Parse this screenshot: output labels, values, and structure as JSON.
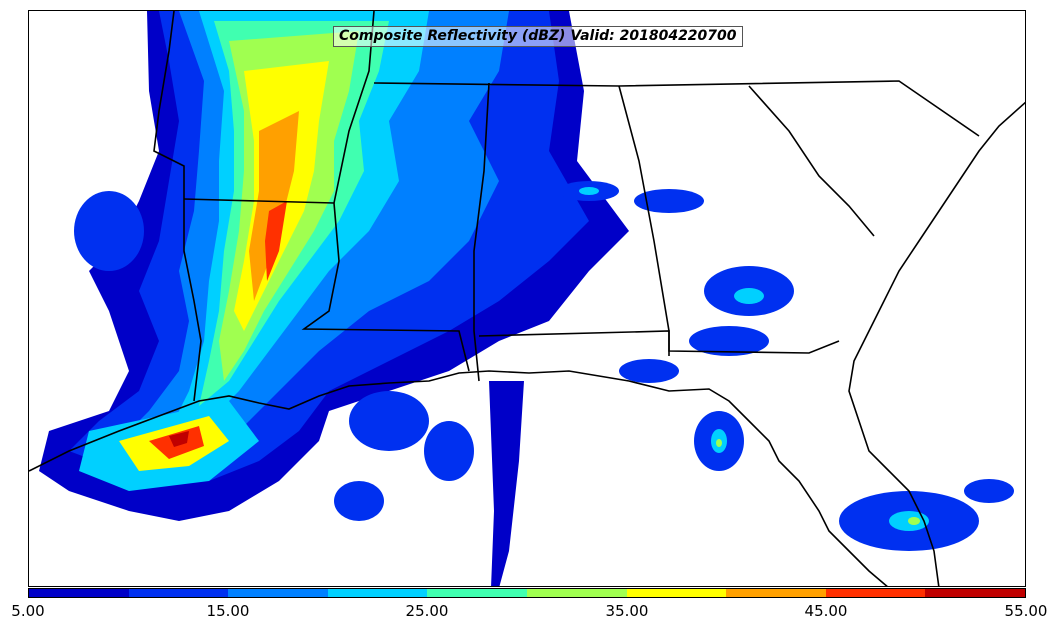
{
  "title": "Composite Reflectivity (dBZ) Valid: 201804220700",
  "colorbar": {
    "colors": [
      "#0000c8",
      "#0030f0",
      "#0080ff",
      "#00d0ff",
      "#40ffb0",
      "#a0ff50",
      "#ffff00",
      "#ffa000",
      "#ff3000",
      "#c00000"
    ],
    "tick_labels": [
      "5.00",
      "15.00",
      "25.00",
      "35.00",
      "45.00",
      "55.00"
    ]
  },
  "palette": {
    "c5": "#0000c8",
    "c10": "#0030f0",
    "c15": "#0080ff",
    "c20": "#00d0ff",
    "c25": "#40ffb0",
    "c30": "#a0ff50",
    "c35": "#ffff00",
    "c40": "#ffa000",
    "c45": "#ff3000",
    "c50": "#c00000"
  }
}
